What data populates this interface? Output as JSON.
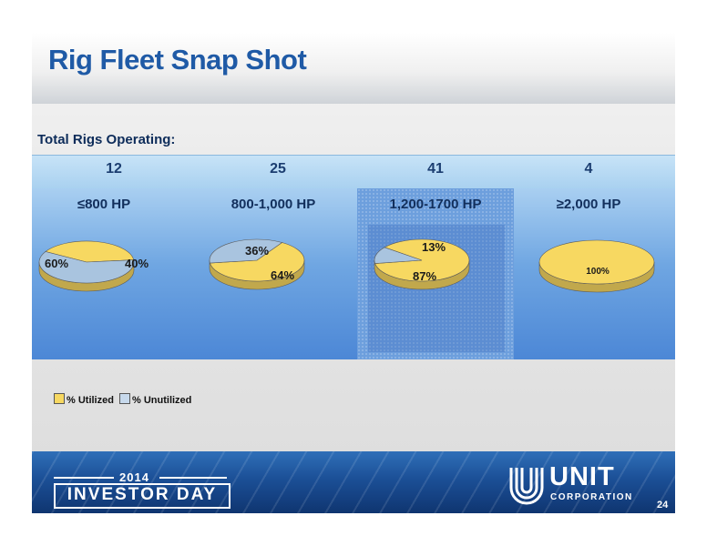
{
  "title": "Rig Fleet Snap Shot",
  "total_label": "Total Rigs Operating:",
  "colors": {
    "utilized": "#f7d861",
    "unutilized": "#a9c4df",
    "title": "#1f5aa6"
  },
  "chart_data": {
    "type": "pie",
    "legend_position": "bottom-left",
    "legend": [
      "% Utilized",
      "% Unutilized"
    ],
    "pies": [
      {
        "category": "≤800 HP",
        "rigs_operating": "12",
        "utilized": 40,
        "unutilized": 60,
        "labels": [
          "40%",
          "60%"
        ]
      },
      {
        "category": "800-1,000 HP",
        "rigs_operating": "25",
        "utilized": 64,
        "unutilized": 36,
        "labels": [
          "64%",
          "36%"
        ]
      },
      {
        "category": "1,200-1700 HP",
        "rigs_operating": "41",
        "utilized": 87,
        "unutilized": 13,
        "labels": [
          "87%",
          "13%"
        ]
      },
      {
        "category": "≥2,000 HP",
        "rigs_operating": "4",
        "utilized": 100,
        "unutilized": 0,
        "labels": [
          "100%",
          ""
        ]
      }
    ]
  },
  "footer": {
    "year": "2014",
    "event": "INVESTOR DAY",
    "logo_name": "UNIT",
    "logo_sub": "CORPORATION",
    "page_number": "24"
  }
}
